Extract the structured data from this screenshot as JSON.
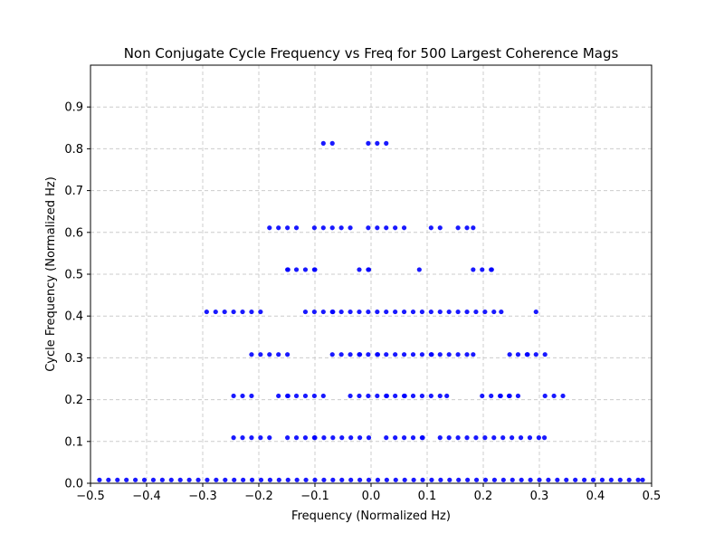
{
  "chart_data": {
    "type": "scatter",
    "title": "Non Conjugate Cycle Frequency vs Freq for 500 Largest Coherence Mags",
    "xlabel": "Frequency (Normalized Hz)",
    "ylabel": "Cycle Frequency (Normalized Hz)",
    "xlim": [
      -0.5,
      0.5
    ],
    "ylim": [
      0,
      1.0
    ],
    "xticks": [
      -0.5,
      -0.4,
      -0.3,
      -0.2,
      -0.1,
      0.0,
      0.1,
      0.2,
      0.3,
      0.4,
      0.5
    ],
    "xtick_labels": [
      "−0.5",
      "−0.4",
      "−0.3",
      "−0.2",
      "−0.1",
      "0.0",
      "0.1",
      "0.2",
      "0.3",
      "0.4",
      "0.5"
    ],
    "yticks": [
      0.0,
      0.1,
      0.2,
      0.3,
      0.4,
      0.5,
      0.6,
      0.7,
      0.8,
      0.9
    ],
    "ytick_labels": [
      "0.0",
      "0.1",
      "0.2",
      "0.3",
      "0.4",
      "0.5",
      "0.6",
      "0.7",
      "0.8",
      "0.9"
    ],
    "grid": true,
    "grid_style": "dashed",
    "marker_color": "#0000ff",
    "rows": [
      {
        "y": 0.008,
        "x": [
          -0.484,
          -0.468,
          -0.452,
          -0.436,
          -0.42,
          -0.404,
          -0.388,
          -0.372,
          -0.356,
          -0.34,
          -0.324,
          -0.308,
          -0.292,
          -0.276,
          -0.26,
          -0.244,
          -0.228,
          -0.212,
          -0.196,
          -0.18,
          -0.164,
          -0.148,
          -0.132,
          -0.116,
          -0.1,
          -0.084,
          -0.068,
          -0.052,
          -0.036,
          -0.02,
          -0.004,
          0.012,
          0.028,
          0.044,
          0.06,
          0.076,
          0.092,
          0.108,
          0.124,
          0.14,
          0.156,
          0.172,
          0.188,
          0.204,
          0.22,
          0.236,
          0.252,
          0.268,
          0.284,
          0.3,
          0.316,
          0.332,
          0.348,
          0.364,
          0.38,
          0.396,
          0.412,
          0.428,
          0.444,
          0.46,
          0.476,
          0.484
        ]
      },
      {
        "y": 0.109,
        "x": [
          -0.245,
          -0.229,
          -0.213,
          -0.197,
          -0.181,
          -0.149,
          -0.133,
          -0.117,
          -0.101,
          -0.1,
          -0.084,
          -0.068,
          -0.052,
          -0.036,
          -0.02,
          -0.004,
          0.027,
          0.043,
          0.059,
          0.075,
          0.091,
          0.092,
          0.123,
          0.139,
          0.155,
          0.171,
          0.187,
          0.203,
          0.219,
          0.235,
          0.251,
          0.267,
          0.283,
          0.299,
          0.309
        ]
      },
      {
        "y": 0.209,
        "x": [
          -0.245,
          -0.229,
          -0.213,
          -0.165,
          -0.149,
          -0.148,
          -0.133,
          -0.117,
          -0.101,
          -0.085,
          -0.037,
          -0.021,
          -0.005,
          0.011,
          0.027,
          0.028,
          0.043,
          0.059,
          0.06,
          0.075,
          0.091,
          0.107,
          0.123,
          0.135,
          0.198,
          0.214,
          0.23,
          0.231,
          0.246,
          0.247,
          0.262,
          0.31,
          0.326,
          0.342
        ]
      },
      {
        "y": 0.308,
        "x": [
          -0.213,
          -0.197,
          -0.181,
          -0.165,
          -0.149,
          -0.069,
          -0.053,
          -0.037,
          -0.021,
          -0.02,
          -0.005,
          0.011,
          0.012,
          0.027,
          0.043,
          0.059,
          0.075,
          0.091,
          0.107,
          0.108,
          0.123,
          0.139,
          0.155,
          0.171,
          0.182,
          0.247,
          0.262,
          0.278,
          0.279,
          0.294,
          0.31
        ]
      },
      {
        "y": 0.41,
        "x": [
          -0.293,
          -0.277,
          -0.261,
          -0.245,
          -0.229,
          -0.213,
          -0.197,
          -0.117,
          -0.101,
          -0.085,
          -0.069,
          -0.068,
          -0.053,
          -0.037,
          -0.021,
          -0.005,
          0.011,
          0.027,
          0.043,
          0.059,
          0.075,
          0.091,
          0.107,
          0.123,
          0.139,
          0.155,
          0.171,
          0.187,
          0.203,
          0.219,
          0.232,
          0.294
        ]
      },
      {
        "y": 0.511,
        "x": [
          -0.149,
          -0.148,
          -0.133,
          -0.117,
          -0.101,
          -0.1,
          -0.021,
          -0.005,
          -0.004,
          0.086,
          0.182,
          0.198,
          0.214,
          0.215
        ]
      },
      {
        "y": 0.611,
        "x": [
          -0.181,
          -0.165,
          -0.149,
          -0.133,
          -0.101,
          -0.085,
          -0.069,
          -0.053,
          -0.037,
          -0.005,
          0.011,
          0.027,
          0.043,
          0.059,
          0.107,
          0.123,
          0.155,
          0.171,
          0.182
        ]
      },
      {
        "y": 0.813,
        "x": [
          -0.085,
          -0.069,
          -0.005,
          0.011,
          0.027
        ]
      }
    ]
  }
}
